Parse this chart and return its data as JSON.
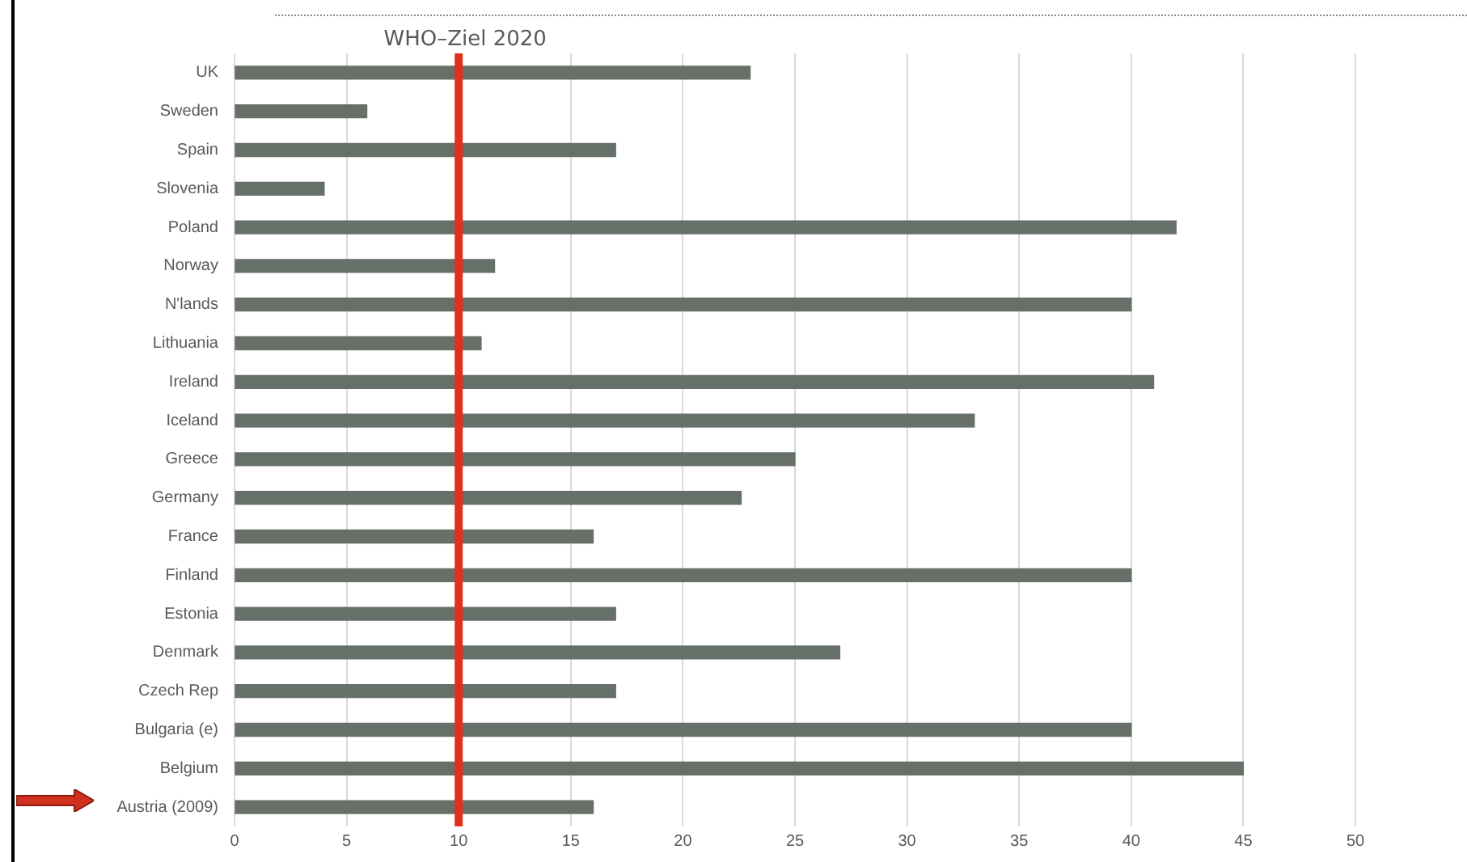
{
  "chart_data": {
    "type": "bar",
    "orientation": "horizontal",
    "categories": [
      "UK",
      "Sweden",
      "Spain",
      "Slovenia",
      "Poland",
      "Norway",
      "N'lands",
      "Lithuania",
      "Ireland",
      "Iceland",
      "Greece",
      "Germany",
      "France",
      "Finland",
      "Estonia",
      "Denmark",
      "Czech Rep",
      "Bulgaria (e)",
      "Belgium",
      "Austria (2009)"
    ],
    "values": [
      23,
      5.9,
      17,
      4,
      42,
      11.6,
      40,
      11,
      41,
      33,
      25,
      22.6,
      16,
      40,
      17,
      27,
      17,
      40,
      45,
      16
    ],
    "color": "#667068",
    "xlim": [
      0,
      50
    ],
    "xticks": [
      0,
      5,
      10,
      15,
      20,
      25,
      30,
      35,
      40,
      45,
      50
    ],
    "grid": "x",
    "legend": false,
    "ref_lines": [
      {
        "axis": "x",
        "value": 10,
        "label": "WHO–Ziel 2020",
        "color": "#e0301e"
      }
    ]
  }
}
